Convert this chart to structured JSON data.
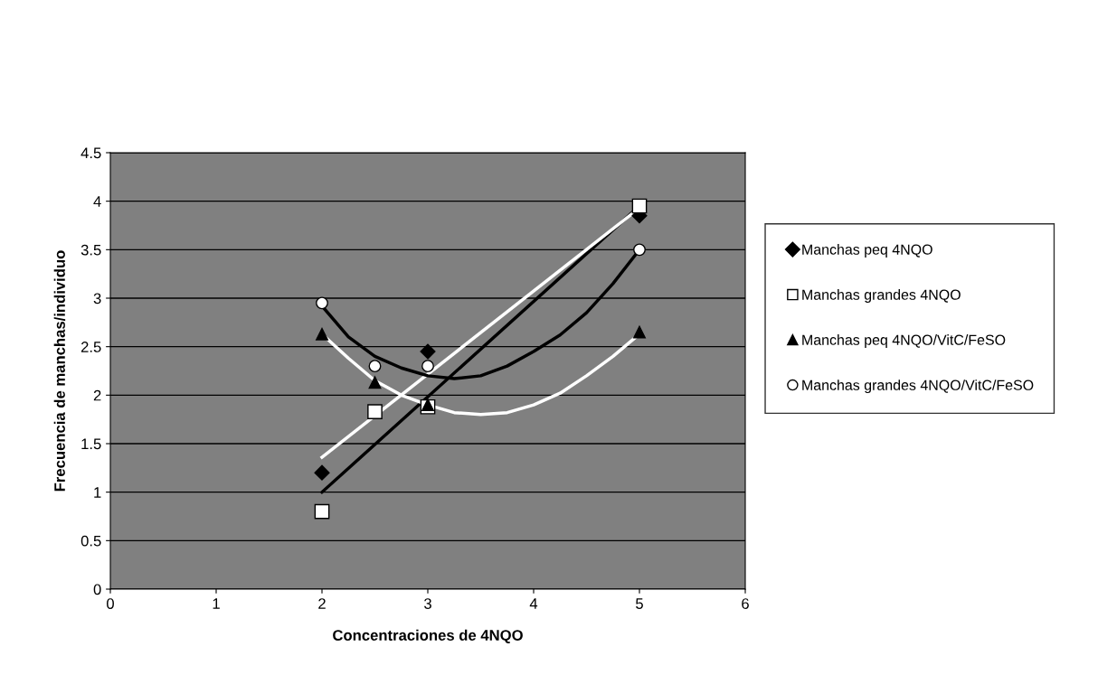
{
  "chart_data": {
    "type": "scatter",
    "xlabel": "Concentraciones de 4NQO",
    "ylabel": "Frecuencia de manchas/individuo",
    "xlim": [
      0,
      6
    ],
    "xticks": [
      0,
      1,
      2,
      3,
      4,
      5,
      6
    ],
    "ylim": [
      0,
      4.5
    ],
    "yticks": [
      0,
      0.5,
      1,
      1.5,
      2,
      2.5,
      3,
      3.5,
      4,
      4.5
    ],
    "grid": "y",
    "legend": "right",
    "series": [
      {
        "name": "Manchas peq 4NQO",
        "color": "#000000",
        "marker": "diamond",
        "x": [
          2,
          3,
          5
        ],
        "values": [
          1.2,
          2.45,
          3.85
        ]
      },
      {
        "name": "Manchas grandes 4NQO",
        "color": "#ffffff",
        "marker": "square",
        "x": [
          2,
          2.5,
          3,
          5
        ],
        "values": [
          0.8,
          1.83,
          1.88,
          3.95
        ]
      },
      {
        "name": "Manchas peq 4NQO/VitC/FeSO",
        "color": "#000000",
        "marker": "triangle",
        "x": [
          2,
          2.5,
          3,
          5
        ],
        "values": [
          2.63,
          2.13,
          1.9,
          2.65
        ]
      },
      {
        "name": "Manchas grandes 4NQO/VitC/FeSO",
        "color": "#ffffff",
        "marker": "circle",
        "x": [
          2,
          2.5,
          3,
          5
        ],
        "values": [
          2.95,
          2.3,
          2.3,
          3.5
        ]
      },
      {
        "type": "line",
        "color": "#000000",
        "x": [
          2,
          5
        ],
        "values": [
          1.0,
          3.95
        ]
      },
      {
        "type": "line",
        "color": "#ffffff",
        "x": [
          2,
          5
        ],
        "values": [
          1.36,
          3.93
        ]
      },
      {
        "type": "line",
        "color": "#000000",
        "x": [
          2,
          2.25,
          2.5,
          2.75,
          3,
          3.25,
          3.5,
          3.75,
          4,
          4.25,
          4.5,
          4.75,
          5
        ],
        "values": [
          2.92,
          2.6,
          2.4,
          2.28,
          2.2,
          2.17,
          2.2,
          2.3,
          2.45,
          2.62,
          2.85,
          3.15,
          3.5
        ]
      },
      {
        "type": "line",
        "color": "#ffffff",
        "x": [
          2,
          2.25,
          2.5,
          2.75,
          3,
          3.25,
          3.5,
          3.75,
          4,
          4.25,
          4.5,
          4.75,
          5
        ],
        "values": [
          2.63,
          2.38,
          2.15,
          2.0,
          1.9,
          1.82,
          1.8,
          1.82,
          1.9,
          2.02,
          2.2,
          2.4,
          2.63
        ]
      }
    ]
  }
}
